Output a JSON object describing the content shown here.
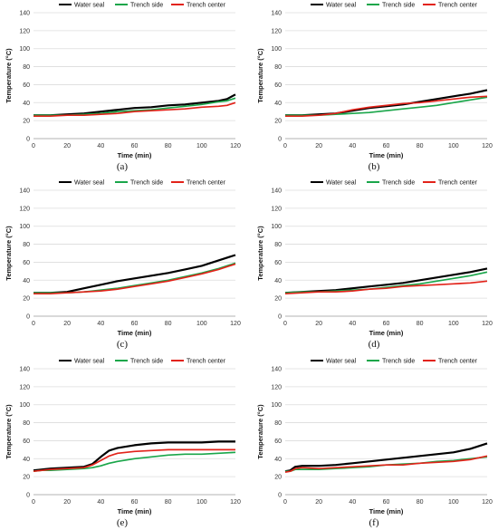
{
  "figure": {
    "panel_labels": [
      "(a)",
      "(b)",
      "(c)",
      "(d)",
      "(e)",
      "(f)"
    ]
  },
  "chart_data": [
    {
      "type": "line",
      "panel": "(a)",
      "xlabel": "Time (min)",
      "ylabel": "Temperature (°C)",
      "xlim": [
        0,
        120
      ],
      "ylim": [
        0,
        140
      ],
      "xticks": [
        0,
        20,
        40,
        60,
        80,
        100,
        120
      ],
      "yticks": [
        0,
        20,
        40,
        60,
        80,
        100,
        120,
        140
      ],
      "grid": "horizontal",
      "legend": "top",
      "x": [
        0,
        10,
        20,
        30,
        40,
        50,
        60,
        70,
        80,
        90,
        100,
        110,
        115,
        120
      ],
      "series": [
        {
          "name": "Water seal",
          "color": "#000000",
          "values": [
            26,
            26,
            27,
            28,
            30,
            32,
            34,
            35,
            37,
            38,
            40,
            42,
            44,
            49
          ]
        },
        {
          "name": "Trench side",
          "color": "#1aa64a",
          "values": [
            26,
            26,
            26,
            27,
            28,
            30,
            31,
            32,
            34,
            36,
            38,
            41,
            42,
            45
          ]
        },
        {
          "name": "Trench center",
          "color": "#e2231a",
          "values": [
            25,
            25,
            26,
            26,
            27,
            28,
            30,
            31,
            32,
            33,
            35,
            36,
            37,
            40
          ]
        }
      ]
    },
    {
      "type": "line",
      "panel": "(b)",
      "xlabel": "Time (min)",
      "ylabel": "Temperature (°C)",
      "xlim": [
        0,
        120
      ],
      "ylim": [
        0,
        140
      ],
      "xticks": [
        0,
        20,
        40,
        60,
        80,
        100,
        120
      ],
      "yticks": [
        0,
        20,
        40,
        60,
        80,
        100,
        120,
        140
      ],
      "grid": "horizontal",
      "legend": "top",
      "x": [
        0,
        10,
        20,
        30,
        40,
        50,
        60,
        70,
        80,
        90,
        100,
        110,
        120
      ],
      "series": [
        {
          "name": "Water seal",
          "color": "#000000",
          "values": [
            26,
            26,
            27,
            28,
            31,
            34,
            36,
            38,
            41,
            44,
            47,
            50,
            54
          ]
        },
        {
          "name": "Trench side",
          "color": "#1aa64a",
          "values": [
            26,
            26,
            26,
            27,
            28,
            29,
            31,
            33,
            35,
            37,
            40,
            43,
            46
          ]
        },
        {
          "name": "Trench center",
          "color": "#e2231a",
          "values": [
            25,
            25,
            26,
            28,
            32,
            35,
            37,
            39,
            40,
            42,
            44,
            46,
            47
          ]
        }
      ]
    },
    {
      "type": "line",
      "panel": "(c)",
      "xlabel": "Time (min)",
      "ylabel": "Temperature (°C)",
      "xlim": [
        0,
        120
      ],
      "ylim": [
        0,
        140
      ],
      "xticks": [
        0,
        20,
        40,
        60,
        80,
        100,
        120
      ],
      "yticks": [
        0,
        20,
        40,
        60,
        80,
        100,
        120,
        140
      ],
      "grid": "horizontal",
      "legend": "top",
      "x": [
        0,
        10,
        20,
        30,
        40,
        50,
        60,
        70,
        80,
        90,
        100,
        110,
        120
      ],
      "series": [
        {
          "name": "Water seal",
          "color": "#000000",
          "values": [
            26,
            26,
            27,
            31,
            35,
            39,
            42,
            45,
            48,
            52,
            56,
            62,
            68
          ]
        },
        {
          "name": "Trench side",
          "color": "#1aa64a",
          "values": [
            26,
            26,
            26,
            27,
            29,
            31,
            34,
            37,
            40,
            44,
            48,
            53,
            59
          ]
        },
        {
          "name": "Trench center",
          "color": "#e2231a",
          "values": [
            25,
            25,
            26,
            27,
            28,
            30,
            33,
            36,
            39,
            43,
            47,
            52,
            58
          ]
        }
      ]
    },
    {
      "type": "line",
      "panel": "(d)",
      "xlabel": "Time (min)",
      "ylabel": "Temperature (°C)",
      "xlim": [
        0,
        120
      ],
      "ylim": [
        0,
        140
      ],
      "xticks": [
        0,
        20,
        40,
        60,
        80,
        100,
        120
      ],
      "yticks": [
        0,
        20,
        40,
        60,
        80,
        100,
        120,
        140
      ],
      "grid": "horizontal",
      "legend": "top",
      "x": [
        0,
        10,
        20,
        30,
        40,
        50,
        60,
        70,
        80,
        90,
        100,
        110,
        120
      ],
      "series": [
        {
          "name": "Water seal",
          "color": "#000000",
          "values": [
            26,
            27,
            28,
            29,
            31,
            33,
            35,
            37,
            40,
            43,
            46,
            49,
            53
          ]
        },
        {
          "name": "Trench side",
          "color": "#1aa64a",
          "values": [
            26,
            27,
            27,
            28,
            29,
            30,
            32,
            34,
            36,
            39,
            42,
            45,
            49
          ]
        },
        {
          "name": "Trench center",
          "color": "#e2231a",
          "values": [
            25,
            26,
            27,
            27,
            28,
            30,
            31,
            33,
            34,
            35,
            36,
            37,
            39
          ]
        }
      ]
    },
    {
      "type": "line",
      "panel": "(e)",
      "xlabel": "Time (min)",
      "ylabel": "Temperature (°C)",
      "xlim": [
        0,
        120
      ],
      "ylim": [
        0,
        140
      ],
      "xticks": [
        0,
        20,
        40,
        60,
        80,
        100,
        120
      ],
      "yticks": [
        0,
        20,
        40,
        60,
        80,
        100,
        120,
        140
      ],
      "grid": "horizontal",
      "legend": "top",
      "x": [
        0,
        5,
        10,
        20,
        30,
        35,
        40,
        45,
        50,
        60,
        70,
        80,
        90,
        100,
        110,
        120
      ],
      "series": [
        {
          "name": "Water seal",
          "color": "#000000",
          "values": [
            27,
            28,
            29,
            30,
            31,
            34,
            42,
            49,
            52,
            55,
            57,
            58,
            58,
            58,
            59,
            59
          ]
        },
        {
          "name": "Trench side",
          "color": "#1aa64a",
          "values": [
            26,
            27,
            27,
            28,
            29,
            30,
            32,
            35,
            37,
            40,
            42,
            44,
            45,
            45,
            46,
            47
          ]
        },
        {
          "name": "Trench center",
          "color": "#e2231a",
          "values": [
            26,
            27,
            28,
            29,
            30,
            33,
            38,
            43,
            46,
            48,
            49,
            50,
            50,
            50,
            50,
            50
          ]
        }
      ]
    },
    {
      "type": "line",
      "panel": "(f)",
      "xlabel": "Time (min)",
      "ylabel": "Temperature (°C)",
      "xlim": [
        0,
        120
      ],
      "ylim": [
        0,
        140
      ],
      "xticks": [
        0,
        20,
        40,
        60,
        80,
        100,
        120
      ],
      "yticks": [
        0,
        20,
        40,
        60,
        80,
        100,
        120,
        140
      ],
      "grid": "horizontal",
      "legend": "top",
      "x": [
        0,
        3,
        6,
        10,
        20,
        30,
        40,
        50,
        60,
        70,
        80,
        90,
        100,
        110,
        120
      ],
      "series": [
        {
          "name": "Water seal",
          "color": "#000000",
          "values": [
            26,
            27,
            31,
            32,
            32,
            33,
            35,
            37,
            39,
            41,
            43,
            45,
            47,
            51,
            57
          ]
        },
        {
          "name": "Trench side",
          "color": "#1aa64a",
          "values": [
            26,
            26,
            28,
            28,
            28,
            29,
            30,
            31,
            33,
            34,
            35,
            37,
            38,
            40,
            42
          ]
        },
        {
          "name": "Trench center",
          "color": "#e2231a",
          "values": [
            25,
            26,
            29,
            30,
            29,
            30,
            31,
            32,
            33,
            33,
            35,
            36,
            37,
            39,
            43
          ]
        }
      ]
    }
  ]
}
